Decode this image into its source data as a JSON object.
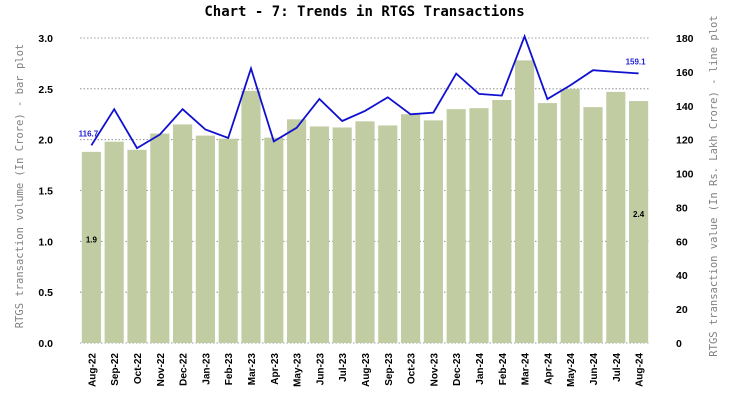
{
  "chart_data": {
    "type": "bar",
    "title": "Chart - 7: Trends in RTGS Transactions",
    "ylabel_left": "RTGS transaction volume (In Crore) - bar plot",
    "ylabel_right": "RTGS transaction value (In Rs. Lakh Crore) - line plot",
    "categories": [
      "Aug-22",
      "Sep-22",
      "Oct-22",
      "Nov-22",
      "Dec-22",
      "Jan-23",
      "Feb-23",
      "Mar-23",
      "Apr-23",
      "May-23",
      "Jun-23",
      "Jul-23",
      "Aug-23",
      "Sep-23",
      "Oct-23",
      "Nov-23",
      "Dec-23",
      "Jan-24",
      "Feb-24",
      "Mar-24",
      "Apr-24",
      "May-24",
      "Jun-24",
      "Jul-24",
      "Aug-24"
    ],
    "ylim_left": [
      0,
      3.0
    ],
    "yticks_left": [
      "0.0",
      "0.5",
      "1.0",
      "1.5",
      "2.0",
      "2.5",
      "3.0"
    ],
    "ylim_right": [
      0,
      180
    ],
    "yticks_right": [
      "0",
      "20",
      "40",
      "60",
      "80",
      "100",
      "120",
      "140",
      "160",
      "180"
    ],
    "grid": true,
    "series": [
      {
        "type": "bar",
        "axis": "left",
        "color": "#c1cca3",
        "values": [
          1.88,
          1.98,
          1.9,
          2.06,
          2.15,
          2.04,
          2.01,
          2.48,
          2.02,
          2.2,
          2.13,
          2.12,
          2.18,
          2.14,
          2.25,
          2.19,
          2.3,
          2.31,
          2.39,
          2.78,
          2.36,
          2.5,
          2.32,
          2.47,
          2.38
        ]
      },
      {
        "type": "line",
        "axis": "right",
        "color": "#1010d0",
        "values": [
          116.7,
          138,
          115,
          123,
          138,
          126,
          121,
          162,
          119,
          127,
          144,
          131,
          137,
          145,
          135,
          136,
          159,
          147,
          146,
          181,
          144,
          152,
          161,
          160,
          159.1
        ]
      }
    ],
    "annotations": [
      {
        "text": "1.9",
        "series": 0,
        "index": 0,
        "value_y": 1.02
      },
      {
        "text": "2.4",
        "series": 0,
        "index": 24,
        "value_y": 1.27
      },
      {
        "text": "116.7",
        "series": 1,
        "index": 0
      },
      {
        "text": "159.1",
        "series": 1,
        "index": 24
      }
    ]
  }
}
